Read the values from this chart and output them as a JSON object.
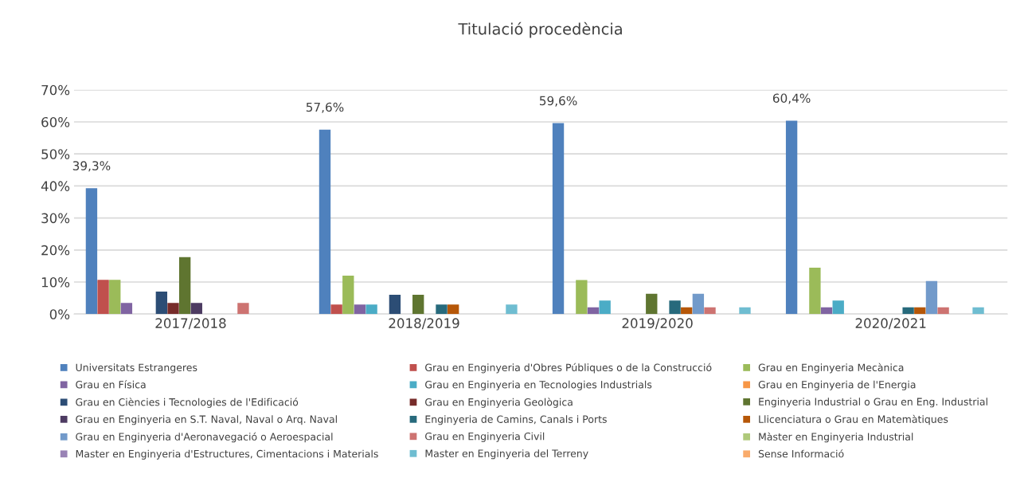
{
  "chart_data": {
    "type": "bar",
    "title": "Titulació procedència",
    "categories": [
      "2017/2018",
      "2018/2019",
      "2019/2020",
      "2020/2021"
    ],
    "ylim": [
      0,
      70
    ],
    "yticks": [
      {
        "value": 0,
        "label": "0%"
      },
      {
        "value": 10,
        "label": "10%"
      },
      {
        "value": 20,
        "label": "20%"
      },
      {
        "value": 30,
        "label": "30%"
      },
      {
        "value": 40,
        "label": "40%"
      },
      {
        "value": 50,
        "label": "50%"
      },
      {
        "value": 60,
        "label": "60%"
      },
      {
        "value": 70,
        "label": "70%"
      }
    ],
    "grid": "y",
    "legend": "bottom",
    "series": [
      {
        "name": "Universitats Estrangeres",
        "color": "#4f81bd",
        "values": [
          39.3,
          57.6,
          59.6,
          60.4
        ],
        "value_labels": [
          "39,3%",
          "57,6%",
          "59,6%",
          "60,4%"
        ]
      },
      {
        "name": "Grau en Enginyeria d'Obres Públiques o de la Construcció",
        "color": "#c0504d",
        "values": [
          10.7,
          3.0,
          null,
          null
        ]
      },
      {
        "name": "Grau en Enginyeria Mecànica",
        "color": "#9bbb59",
        "values": [
          10.7,
          12.0,
          10.6,
          14.5
        ]
      },
      {
        "name": "Grau en Física",
        "color": "#8064a2",
        "values": [
          3.5,
          3.0,
          2.1,
          2.1
        ]
      },
      {
        "name": "Grau en Enginyeria en Tecnologies Industrials",
        "color": "#4bacc6",
        "values": [
          null,
          3.0,
          4.2,
          4.2
        ]
      },
      {
        "name": "Grau en Enginyeria de l'Energia",
        "color": "#f79646",
        "values": [
          null,
          null,
          null,
          null
        ]
      },
      {
        "name": "Grau en Ciències i Tecnologies de l'Edificació",
        "color": "#2c4d75",
        "values": [
          7.0,
          6.0,
          null,
          null
        ]
      },
      {
        "name": "Grau en Enginyeria Geològica",
        "color": "#772c2a",
        "values": [
          3.5,
          null,
          null,
          null
        ]
      },
      {
        "name": "Enginyeria Industrial o Grau en Eng. Industrial",
        "color": "#5f7530",
        "values": [
          17.8,
          6.0,
          6.3,
          null
        ]
      },
      {
        "name": "Grau en Enginyeria en S.T. Naval, Naval o Arq. Naval",
        "color": "#4d3b62",
        "values": [
          3.5,
          null,
          null,
          null
        ]
      },
      {
        "name": "Enginyeria de Camins, Canals i Ports",
        "color": "#276a7c",
        "values": [
          null,
          3.0,
          4.2,
          2.1
        ]
      },
      {
        "name": "Llicenciatura o Grau en Matemàtiques",
        "color": "#b65708",
        "values": [
          null,
          3.0,
          2.1,
          2.1
        ]
      },
      {
        "name": "Grau en Enginyeria d'Aeronavegació o Aeroespacial",
        "color": "#729aca",
        "values": [
          null,
          null,
          6.3,
          10.3
        ]
      },
      {
        "name": "Grau en Enginyeria Civil",
        "color": "#cd7371",
        "values": [
          3.5,
          null,
          2.1,
          2.1
        ]
      },
      {
        "name": "Màster en Enginyeria Industrial",
        "color": "#afc97a",
        "values": [
          null,
          null,
          null,
          null
        ]
      },
      {
        "name": "Master en Enginyeria d'Estructures, Cimentacions i Materials",
        "color": "#9983b5",
        "values": [
          null,
          null,
          null,
          null
        ]
      },
      {
        "name": "Master en Enginyeria del Terreny",
        "color": "#6fbdd1",
        "values": [
          null,
          3.0,
          2.1,
          2.1
        ]
      },
      {
        "name": "Sense Informació",
        "color": "#f9ab6b",
        "values": [
          null,
          null,
          null,
          null
        ]
      }
    ]
  }
}
